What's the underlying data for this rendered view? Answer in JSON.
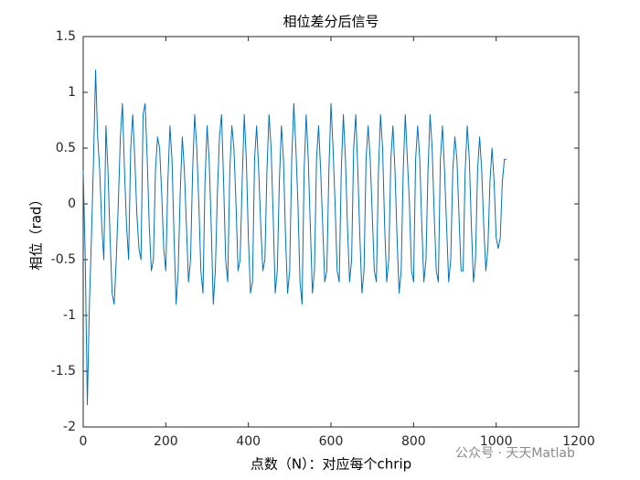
{
  "chart_data": {
    "type": "line",
    "title": "相位差分后信号",
    "xlabel": "点数（N）：对应每个chrip",
    "ylabel": "相位（rad）",
    "watermark": "公众号 · 天天Matlab",
    "xlim": [
      0,
      1200
    ],
    "ylim": [
      -2,
      1.5
    ],
    "xticks": [
      0,
      200,
      400,
      600,
      800,
      1000,
      1200
    ],
    "yticks": [
      -2,
      -1.5,
      -1,
      -0.5,
      0,
      0.5,
      1,
      1.5
    ],
    "grid": false,
    "x": [
      0,
      5,
      10,
      15,
      20,
      25,
      30,
      35,
      40,
      45,
      50,
      55,
      60,
      65,
      70,
      75,
      80,
      85,
      90,
      95,
      100,
      105,
      110,
      115,
      120,
      125,
      130,
      135,
      140,
      145,
      150,
      155,
      160,
      165,
      170,
      175,
      180,
      185,
      190,
      195,
      200,
      205,
      210,
      215,
      220,
      225,
      230,
      235,
      240,
      245,
      250,
      255,
      260,
      265,
      270,
      275,
      280,
      285,
      290,
      295,
      300,
      305,
      310,
      315,
      320,
      325,
      330,
      335,
      340,
      345,
      350,
      355,
      360,
      365,
      370,
      375,
      380,
      385,
      390,
      395,
      400,
      405,
      410,
      415,
      420,
      425,
      430,
      435,
      440,
      445,
      450,
      455,
      460,
      465,
      470,
      475,
      480,
      485,
      490,
      495,
      500,
      505,
      510,
      515,
      520,
      525,
      530,
      535,
      540,
      545,
      550,
      555,
      560,
      565,
      570,
      575,
      580,
      585,
      590,
      595,
      600,
      605,
      610,
      615,
      620,
      625,
      630,
      635,
      640,
      645,
      650,
      655,
      660,
      665,
      670,
      675,
      680,
      685,
      690,
      695,
      700,
      705,
      710,
      715,
      720,
      725,
      730,
      735,
      740,
      745,
      750,
      755,
      760,
      765,
      770,
      775,
      780,
      785,
      790,
      795,
      800,
      805,
      810,
      815,
      820,
      825,
      830,
      835,
      840,
      845,
      850,
      855,
      860,
      865,
      870,
      875,
      880,
      885,
      890,
      895,
      900,
      905,
      910,
      915,
      920,
      925,
      930,
      935,
      940,
      945,
      950,
      955,
      960,
      965,
      970,
      975,
      980,
      985,
      990,
      995,
      1000,
      1005,
      1010,
      1015,
      1020,
      1025
    ],
    "series": [
      {
        "name": "相位",
        "color": "#0072bd",
        "values": [
          0.3,
          -0.5,
          -1.8,
          -0.9,
          -0.3,
          0.4,
          1.2,
          0.6,
          0.3,
          -0.2,
          -0.5,
          0.7,
          0.3,
          -0.3,
          -0.8,
          -0.9,
          -0.5,
          0.0,
          0.6,
          0.9,
          0.3,
          -0.2,
          -0.5,
          0.5,
          0.8,
          0.4,
          -0.1,
          -0.4,
          -0.5,
          0.8,
          0.9,
          0.4,
          -0.2,
          -0.6,
          -0.5,
          0.3,
          0.6,
          0.5,
          0.1,
          -0.4,
          -0.6,
          0.2,
          0.7,
          0.4,
          -0.3,
          -0.9,
          -0.6,
          0.1,
          0.6,
          0.3,
          -0.2,
          -0.7,
          -0.5,
          0.3,
          0.8,
          0.5,
          0.0,
          -0.6,
          -0.8,
          0.2,
          0.7,
          0.4,
          -0.2,
          -0.9,
          -0.6,
          0.1,
          0.6,
          0.8,
          0.2,
          -0.5,
          -0.7,
          0.3,
          0.7,
          0.5,
          0.0,
          -0.6,
          -0.5,
          0.2,
          0.8,
          0.4,
          -0.3,
          -0.8,
          -0.7,
          0.4,
          0.7,
          0.3,
          -0.2,
          -0.6,
          -0.5,
          0.3,
          0.8,
          0.5,
          -0.1,
          -0.8,
          -0.6,
          0.2,
          0.7,
          0.4,
          -0.3,
          -0.8,
          -0.6,
          0.4,
          0.9,
          0.5,
          0.0,
          -0.7,
          -0.9,
          0.3,
          0.8,
          0.4,
          -0.2,
          -0.8,
          -0.6,
          0.4,
          0.7,
          0.3,
          -0.2,
          -0.7,
          -0.6,
          0.3,
          0.9,
          0.5,
          0.0,
          -0.6,
          -0.7,
          0.3,
          0.8,
          0.4,
          -0.2,
          -0.7,
          -0.5,
          0.5,
          0.8,
          0.3,
          -0.3,
          -0.8,
          -0.6,
          0.4,
          0.7,
          0.4,
          -0.1,
          -0.6,
          -0.7,
          0.3,
          0.8,
          0.5,
          -0.2,
          -0.7,
          -0.5,
          0.4,
          0.7,
          0.3,
          -0.3,
          -0.8,
          -0.6,
          0.3,
          0.8,
          0.4,
          0.0,
          -0.6,
          -0.7,
          0.4,
          0.7,
          0.4,
          -0.2,
          -0.7,
          -0.5,
          0.3,
          0.8,
          0.5,
          -0.1,
          -0.6,
          -0.7,
          0.4,
          0.7,
          0.3,
          -0.2,
          -0.7,
          -0.5,
          0.3,
          0.6,
          0.4,
          -0.1,
          -0.6,
          -0.6,
          0.3,
          0.7,
          0.4,
          -0.2,
          -0.7,
          -0.5,
          0.3,
          0.6,
          0.3,
          -0.2,
          -0.6,
          -0.4,
          0.2,
          0.5,
          0.2,
          -0.3,
          -0.4,
          -0.3,
          0.2,
          0.4,
          0.4
        ]
      }
    ]
  }
}
